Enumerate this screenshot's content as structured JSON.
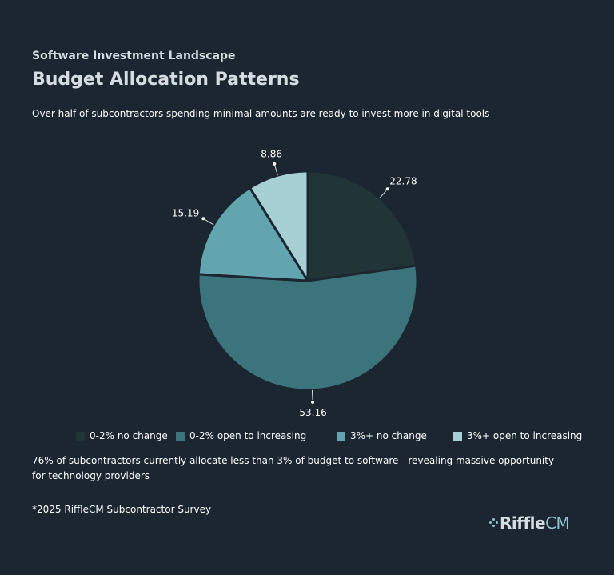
{
  "header": {
    "eyebrow": "Software Investment Landscape",
    "title": "Budget Allocation Patterns",
    "subtitle": "Over half of subcontractors spending minimal amounts are ready to invest more in digital tools"
  },
  "chart_data": {
    "type": "pie",
    "categories": [
      "0-2% no change",
      "0-2% open to increasing",
      "3%+ no change",
      "3%+ open to increasing"
    ],
    "values": [
      22.78,
      53.16,
      15.19,
      8.86
    ],
    "data_labels": [
      "22.78",
      "53.16",
      "15.19",
      "8.86"
    ],
    "colors": [
      "#213539",
      "#3b747b",
      "#62a5ae",
      "#a7d0d5"
    ],
    "slice_border_color": "#1b2630",
    "label_color": "#ffffff",
    "start": "12 o'clock",
    "direction": "clockwise",
    "legend_position": "bottom"
  },
  "legend": {
    "items": [
      {
        "label": "0-2% no change",
        "color": "#213539"
      },
      {
        "label": "0-2% open to increasing",
        "color": "#3b747b"
      },
      {
        "label": "3%+ no change",
        "color": "#62a5ae"
      },
      {
        "label": "3%+ open to increasing",
        "color": "#a7d0d5"
      }
    ]
  },
  "footer": {
    "note": "76% of subcontractors currently allocate less than 3% of budget to software—revealing massive opportunity for technology providers",
    "source": "*2025 RiffleCM Subcontractor Survey"
  },
  "logo": {
    "primary": "Riffle",
    "secondary": "CM",
    "primary_color": "#d6dde2",
    "secondary_color": "#8fc5cf"
  }
}
